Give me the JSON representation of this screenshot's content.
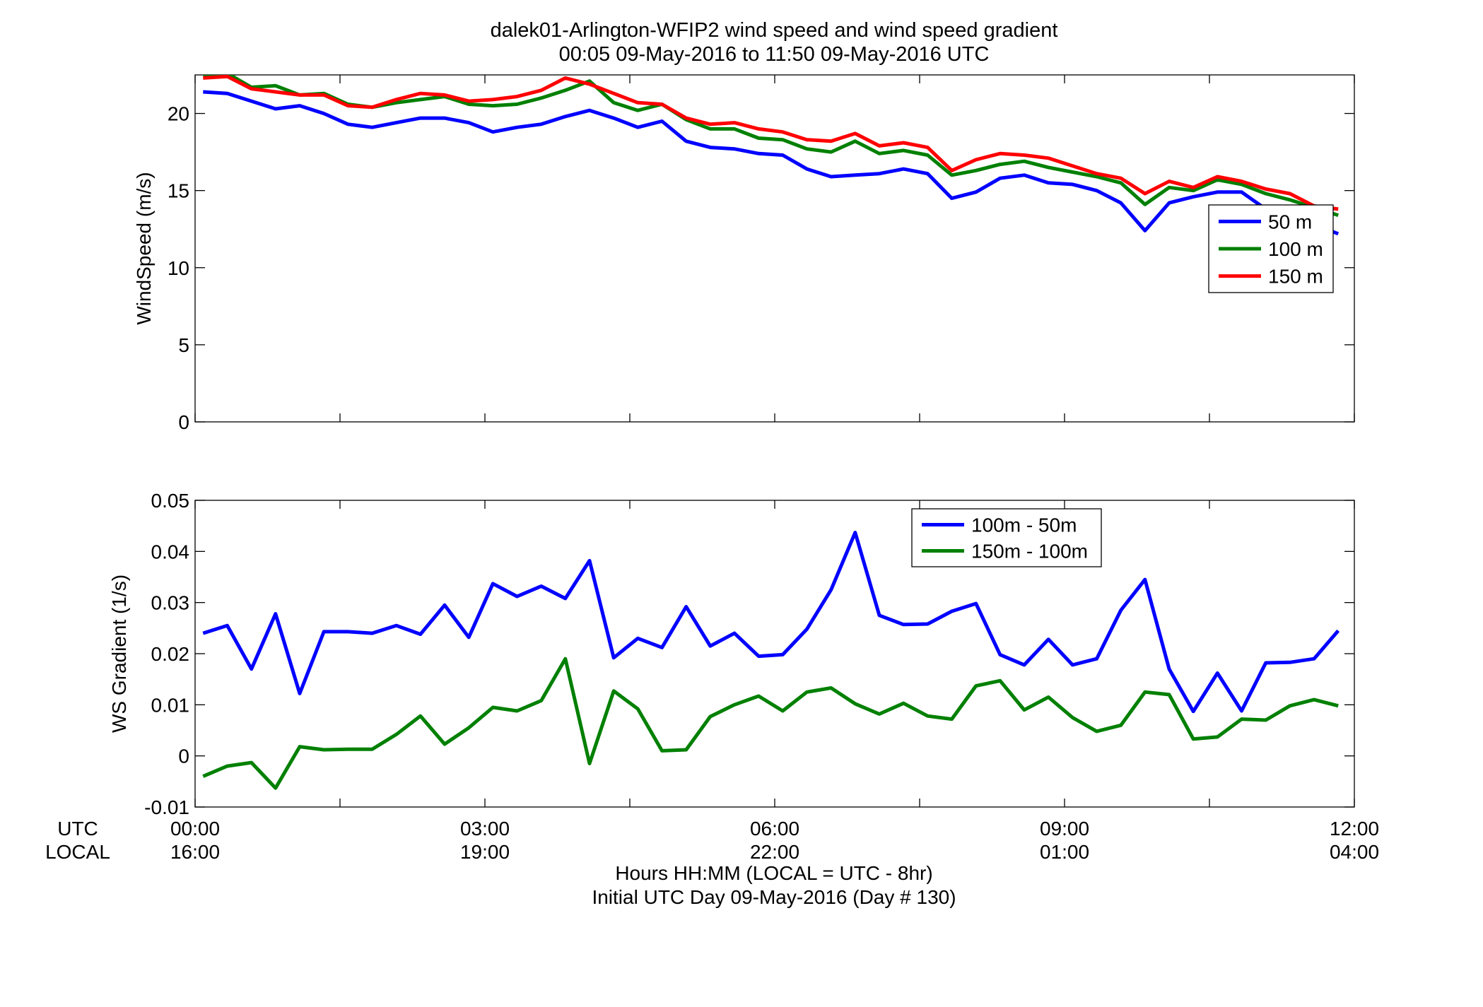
{
  "title": {
    "line1": "dalek01-Arlington-WFIP2  wind speed and wind speed gradient",
    "line2": "00:05 09-May-2016 to 11:50 09-May-2016  UTC"
  },
  "x_axis": {
    "row_labels": [
      "UTC",
      "LOCAL"
    ],
    "ticks_utc": [
      "00:00",
      "03:00",
      "06:00",
      "09:00",
      "12:00"
    ],
    "ticks_local": [
      "16:00",
      "19:00",
      "22:00",
      "01:00",
      "04:00"
    ],
    "label_line1": "Hours HH:MM  (LOCAL = UTC - 8hr)",
    "label_line2": "Initial UTC Day 09-May-2016 (Day # 130)"
  },
  "chart_data": [
    {
      "type": "line",
      "ylabel": "WindSpeed (m/s)",
      "ylim": [
        0,
        22.5
      ],
      "yticks": [
        "0",
        "5",
        "10",
        "15",
        "20"
      ],
      "xlim_hours": [
        0,
        12
      ],
      "legend_position": "right",
      "x_hours": [
        0.083,
        0.333,
        0.583,
        0.833,
        1.083,
        1.333,
        1.583,
        1.833,
        2.083,
        2.333,
        2.583,
        2.833,
        3.083,
        3.333,
        3.583,
        3.833,
        4.083,
        4.333,
        4.583,
        4.833,
        5.083,
        5.333,
        5.583,
        5.833,
        6.083,
        6.333,
        6.583,
        6.833,
        7.083,
        7.333,
        7.583,
        7.833,
        8.083,
        8.333,
        8.583,
        8.833,
        9.083,
        9.333,
        9.583,
        9.833,
        10.083,
        10.333,
        10.583,
        10.833,
        11.083,
        11.333,
        11.583,
        11.833
      ],
      "series": [
        {
          "name": "50 m",
          "color": "#0000ff",
          "values": [
            21.4,
            21.3,
            20.8,
            20.3,
            20.5,
            20.0,
            19.3,
            19.1,
            19.4,
            19.7,
            19.7,
            19.4,
            18.8,
            19.1,
            19.3,
            19.8,
            20.2,
            19.7,
            19.1,
            19.5,
            18.2,
            17.8,
            17.7,
            17.4,
            17.3,
            16.4,
            15.9,
            16.0,
            16.1,
            16.4,
            16.1,
            14.5,
            14.9,
            15.8,
            16.0,
            15.5,
            15.4,
            15.0,
            14.2,
            12.4,
            14.2,
            14.6,
            14.9,
            14.9,
            13.8,
            13.2,
            12.8,
            12.2
          ]
        },
        {
          "name": "100 m",
          "color": "#008000",
          "values": [
            22.5,
            22.6,
            21.7,
            21.8,
            21.2,
            21.3,
            20.6,
            20.4,
            20.7,
            20.9,
            21.1,
            20.6,
            20.5,
            20.6,
            21.0,
            21.5,
            22.1,
            20.7,
            20.2,
            20.6,
            19.6,
            19.0,
            19.0,
            18.4,
            18.3,
            17.7,
            17.5,
            18.2,
            17.4,
            17.6,
            17.3,
            16.0,
            16.3,
            16.7,
            16.9,
            16.5,
            16.2,
            15.9,
            15.5,
            14.1,
            15.2,
            15.0,
            15.7,
            15.4,
            14.8,
            14.4,
            13.9,
            13.4
          ]
        },
        {
          "name": "150 m",
          "color": "#ff0000",
          "values": [
            22.3,
            22.4,
            21.6,
            21.4,
            21.2,
            21.2,
            20.5,
            20.4,
            20.9,
            21.3,
            21.2,
            20.8,
            20.9,
            21.1,
            21.5,
            22.3,
            21.9,
            21.3,
            20.7,
            20.6,
            19.7,
            19.3,
            19.4,
            19.0,
            18.8,
            18.3,
            18.2,
            18.7,
            17.9,
            18.1,
            17.8,
            16.3,
            17.0,
            17.4,
            17.3,
            17.1,
            16.6,
            16.1,
            15.8,
            14.8,
            15.6,
            15.2,
            15.9,
            15.6,
            15.1,
            14.8,
            14.0,
            13.8
          ]
        }
      ]
    },
    {
      "type": "line",
      "ylabel": "WS Gradient (1/s)",
      "ylim": [
        -0.01,
        0.05
      ],
      "yticks": [
        "-0.01",
        "0",
        "0.01",
        "0.02",
        "0.03",
        "0.04",
        "0.05"
      ],
      "xlim_hours": [
        0,
        12
      ],
      "legend_position": "top-right",
      "x_hours": [
        0.083,
        0.333,
        0.583,
        0.833,
        1.083,
        1.333,
        1.583,
        1.833,
        2.083,
        2.333,
        2.583,
        2.833,
        3.083,
        3.333,
        3.583,
        3.833,
        4.083,
        4.333,
        4.583,
        4.833,
        5.083,
        5.333,
        5.583,
        5.833,
        6.083,
        6.333,
        6.583,
        6.833,
        7.083,
        7.333,
        7.583,
        7.833,
        8.083,
        8.333,
        8.583,
        8.833,
        9.083,
        9.333,
        9.583,
        9.833,
        10.083,
        10.333,
        10.583,
        10.833,
        11.083,
        11.333,
        11.583,
        11.833
      ],
      "series": [
        {
          "name": "100m - 50m",
          "color": "#0000ff",
          "values": [
            0.024,
            0.0255,
            0.017,
            0.0278,
            0.0122,
            0.0243,
            0.0243,
            0.024,
            0.0255,
            0.0238,
            0.0295,
            0.0232,
            0.0337,
            0.0312,
            0.0332,
            0.0308,
            0.0382,
            0.0192,
            0.023,
            0.0212,
            0.0292,
            0.0215,
            0.024,
            0.0195,
            0.0198,
            0.0248,
            0.0325,
            0.0437,
            0.0275,
            0.0257,
            0.0258,
            0.0283,
            0.0298,
            0.0198,
            0.0178,
            0.0228,
            0.0178,
            0.019,
            0.0285,
            0.0345,
            0.017,
            0.0087,
            0.0162,
            0.0088,
            0.0182,
            0.0183,
            0.019,
            0.0245
          ]
        },
        {
          "name": "150m - 100m",
          "color": "#008000",
          "values": [
            -0.004,
            -0.002,
            -0.0013,
            -0.0063,
            0.0018,
            0.0012,
            0.0013,
            0.0013,
            0.0042,
            0.0078,
            0.0023,
            0.0055,
            0.0095,
            0.0088,
            0.0108,
            0.019,
            -0.0015,
            0.0127,
            0.0092,
            0.001,
            0.0012,
            0.0077,
            0.01,
            0.0117,
            0.0088,
            0.0125,
            0.0133,
            0.0102,
            0.0082,
            0.0103,
            0.0078,
            0.0072,
            0.0137,
            0.0147,
            0.009,
            0.0115,
            0.0075,
            0.0048,
            0.006,
            0.0125,
            0.012,
            0.0033,
            0.0037,
            0.0072,
            0.007,
            0.0098,
            0.011,
            0.0098
          ]
        }
      ]
    }
  ]
}
